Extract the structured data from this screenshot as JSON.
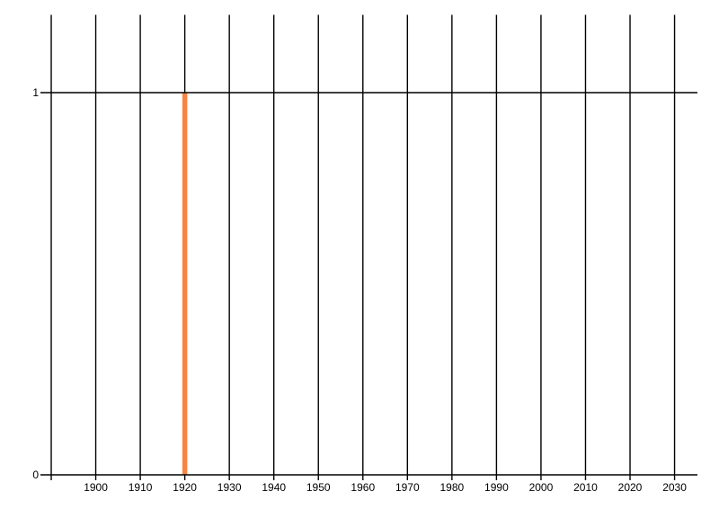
{
  "chart_data": {
    "type": "bar",
    "title": "",
    "xlabel": "",
    "ylabel": "",
    "x_gridline_years": [
      1890,
      1900,
      1910,
      1920,
      1930,
      1940,
      1950,
      1960,
      1970,
      1980,
      1990,
      2000,
      2010,
      2020,
      2030
    ],
    "x_ticks": [
      1900,
      1910,
      1920,
      1930,
      1940,
      1950,
      1960,
      1970,
      1980,
      1990,
      2000,
      2010,
      2020,
      2030
    ],
    "x_tick_labels": [
      "1900",
      "1910",
      "1920",
      "1930",
      "1940",
      "1950",
      "1960",
      "1970",
      "1980",
      "1990",
      "2000",
      "2010",
      "2020",
      "2030"
    ],
    "y_ticks": [
      {
        "value": 0,
        "label": "0"
      },
      {
        "value": 1,
        "label": "1"
      }
    ],
    "bars": [
      {
        "x": 1920,
        "value": 1
      }
    ],
    "xlim": [
      1887.6,
      2035.1
    ],
    "ylim": [
      0,
      1.2
    ],
    "grid": "vertical-only",
    "legend_position": "none",
    "colors": {
      "bar": "#F78541",
      "grid": "#000000",
      "axis": "#000000",
      "text": "#000000",
      "background": "#FFFFFF"
    }
  }
}
